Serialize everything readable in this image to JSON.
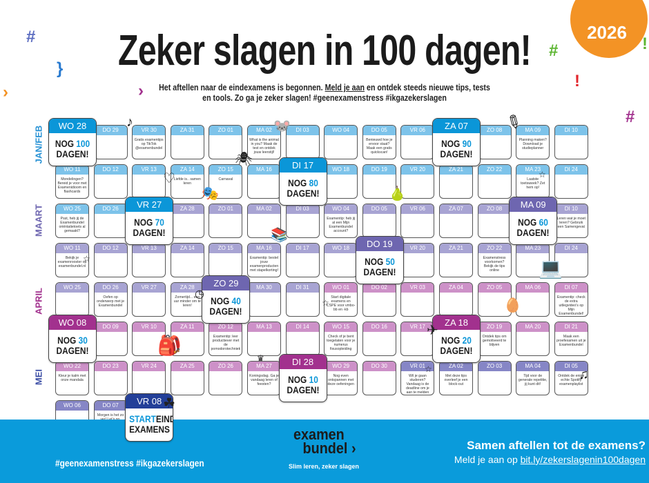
{
  "year": "2026",
  "title": "Zeker slagen in 100 dagen!",
  "subtitle": {
    "part1": "Het aftellen naar de eindexamens is begonnen. ",
    "link": "Meld je aan",
    "part2": " en ontdek steeds nieuwe tips, tests en tools. Zo ga je zeker slagen! #geenexamenstress #ikgazekerslagen"
  },
  "months": [
    {
      "label": "JAN/FEB",
      "color": "#2a93d5"
    },
    {
      "label": "MAART",
      "color": "#6e66b0"
    },
    {
      "label": "APRIL",
      "color": "#a2318e"
    },
    {
      "label": "MEI",
      "color": "#3d4fa6"
    }
  ],
  "colors": {
    "feb": "#7dc3ea",
    "mrt": "#a8a4d3",
    "apr": "#cd91c8",
    "mei": "#8686c6",
    "blue": "#0b96d8",
    "purple": "#6e66b0",
    "magenta": "#a2318e",
    "navy": "#233f98",
    "count": "#0b96d8",
    "footer": "#0a9bdb",
    "year": "#f39325"
  },
  "big_text": {
    "nog": "NOG",
    "dagen": "DAGEN!",
    "start": "START",
    "eind": "EIND-",
    "examens": "EXAMENS"
  },
  "rows": [
    [
      {
        "day": "WO 28",
        "big": "blue",
        "count": "100"
      },
      {
        "day": "DO 29",
        "t": "feb"
      },
      {
        "day": "VR 30",
        "t": "feb",
        "note": "Gratis examentips op TikTok @examenbundel"
      },
      {
        "day": "ZA 31",
        "t": "feb"
      },
      {
        "day": "ZO 01",
        "t": "feb"
      },
      {
        "day": "MA 02",
        "t": "feb",
        "note": "What is the animal in you? Maak de test en ontdek jouw leerstijl!"
      },
      {
        "day": "DI 03",
        "t": "feb"
      },
      {
        "day": "WO 04",
        "t": "feb"
      },
      {
        "day": "DO 05",
        "t": "feb",
        "note": "Benieuwd hoe je ervoor staat? Maak een gratis quickscan!"
      },
      {
        "day": "VR 06",
        "t": "feb"
      },
      {
        "day": "ZA 07",
        "big": "blue",
        "count": "90"
      },
      {
        "day": "ZO 08",
        "t": "feb"
      },
      {
        "day": "MA 09",
        "t": "feb",
        "note": "Planning maken? Download je studieplanner"
      },
      {
        "day": "DI 10",
        "t": "feb"
      }
    ],
    [
      {
        "day": "WO 11",
        "t": "feb",
        "note": "Mondelingen? Bereid je voor met Examenidioom en flashcards"
      },
      {
        "day": "DO 12",
        "t": "feb"
      },
      {
        "day": "VR 13",
        "t": "feb"
      },
      {
        "day": "ZA 14",
        "t": "feb",
        "note": "Liefde is.. samen leren"
      },
      {
        "day": "ZO 15",
        "t": "feb",
        "note": "Carnaval"
      },
      {
        "day": "MA 16",
        "t": "feb"
      },
      {
        "day": "DI 17",
        "big": "blue",
        "count": "80"
      },
      {
        "day": "WO 18",
        "t": "feb"
      },
      {
        "day": "DO 19",
        "t": "feb"
      },
      {
        "day": "VR 20",
        "t": "feb"
      },
      {
        "day": "ZA 21",
        "t": "feb"
      },
      {
        "day": "ZO 22",
        "t": "feb"
      },
      {
        "day": "MA 23",
        "t": "feb",
        "note": "Laatste toetsweek? Zet hem op!"
      },
      {
        "day": "DI 24",
        "t": "feb"
      }
    ],
    [
      {
        "day": "WO 25",
        "t": "feb",
        "note": "Psst, heb jij de Examenbundel oriëntatietoets al gemaakt?"
      },
      {
        "day": "DO 26",
        "t": "feb"
      },
      {
        "day": "VR 27",
        "big": "blue",
        "count": "70"
      },
      {
        "day": "ZA 28",
        "t": "mrt"
      },
      {
        "day": "ZO 01",
        "t": "mrt"
      },
      {
        "day": "MA 02",
        "t": "mrt"
      },
      {
        "day": "DI 03",
        "t": "mrt"
      },
      {
        "day": "WO 04",
        "t": "mrt",
        "note": "Examentip: heb jij al een Mijn Examenbundel account?"
      },
      {
        "day": "DO 05",
        "t": "mrt"
      },
      {
        "day": "VR 06",
        "t": "mrt"
      },
      {
        "day": "ZA 07",
        "t": "mrt"
      },
      {
        "day": "ZO 08",
        "t": "mrt"
      },
      {
        "day": "MA 09",
        "big": "purple",
        "count": "60"
      },
      {
        "day": "DI 10",
        "t": "mrt",
        "note": "Leren wat je moet leren? Gebruik een Samengevat"
      }
    ],
    [
      {
        "day": "WO 11",
        "t": "mrt",
        "note": "Bekijk je examenrooster op examenbundel.nl"
      },
      {
        "day": "DO 12",
        "t": "mrt"
      },
      {
        "day": "VR 13",
        "t": "mrt"
      },
      {
        "day": "ZA 14",
        "t": "mrt"
      },
      {
        "day": "ZO 15",
        "t": "mrt"
      },
      {
        "day": "MA 16",
        "t": "mrt",
        "note": "Examentip: bestel jouw examenproducten met stapelkorting!"
      },
      {
        "day": "DI 17",
        "t": "mrt"
      },
      {
        "day": "WO 18",
        "t": "mrt"
      },
      {
        "day": "DO 19",
        "big": "purple",
        "count": "50"
      },
      {
        "day": "VR 20",
        "t": "mrt"
      },
      {
        "day": "ZA 21",
        "t": "mrt"
      },
      {
        "day": "ZO 22",
        "t": "mrt",
        "note": "Examenstress voorkomen? Bekijk de tips online"
      },
      {
        "day": "MA 23",
        "t": "mrt"
      },
      {
        "day": "DI 24",
        "t": "mrt"
      }
    ],
    [
      {
        "day": "WO 25",
        "t": "mrt"
      },
      {
        "day": "DO 26",
        "t": "mrt",
        "note": "Oefen op onderwerp met je Examenbundel"
      },
      {
        "day": "VR 27",
        "t": "mrt"
      },
      {
        "day": "ZA 28",
        "t": "mrt",
        "note": "Zomertijd... een uur minder om te leren!"
      },
      {
        "day": "ZO 29",
        "big": "purple",
        "count": "40"
      },
      {
        "day": "MA 30",
        "t": "mrt"
      },
      {
        "day": "DI 31",
        "t": "mrt"
      },
      {
        "day": "WO 01",
        "t": "apr",
        "note": "Start digitale examens en CSPE voor vmbo-bb en -kb"
      },
      {
        "day": "DO 02",
        "t": "apr"
      },
      {
        "day": "VR 03",
        "t": "apr"
      },
      {
        "day": "ZA 04",
        "t": "apr"
      },
      {
        "day": "ZO 05",
        "t": "apr"
      },
      {
        "day": "MA 06",
        "t": "apr"
      },
      {
        "day": "DI 07",
        "t": "apr",
        "note": "Examentip: check de extra uitlegvideo's op Mijn Examenbundel!"
      }
    ],
    [
      {
        "day": "WO 08",
        "big": "magenta",
        "count": "30"
      },
      {
        "day": "DO 09",
        "t": "apr"
      },
      {
        "day": "VR 10",
        "t": "apr"
      },
      {
        "day": "ZA 11",
        "t": "apr"
      },
      {
        "day": "ZO 12",
        "t": "apr",
        "note": "Examentip: leer productiever met de pomodorotechniek"
      },
      {
        "day": "MA 13",
        "t": "apr"
      },
      {
        "day": "DI 14",
        "t": "apr"
      },
      {
        "day": "WO 15",
        "t": "apr",
        "note": "Check of je bent toegelaten voor je numerus fixusopleiding"
      },
      {
        "day": "DO 16",
        "t": "apr"
      },
      {
        "day": "VR 17",
        "t": "apr"
      },
      {
        "day": "ZA 18",
        "big": "magenta",
        "count": "20"
      },
      {
        "day": "ZO 19",
        "t": "apr",
        "note": "Ontdek tips om gemotiveerd te blijven"
      },
      {
        "day": "MA 20",
        "t": "apr"
      },
      {
        "day": "DI 21",
        "t": "apr",
        "note": "Maak een proefexamen uit je Examenbundel"
      }
    ],
    [
      {
        "day": "WO 22",
        "t": "apr",
        "note": "Kleur je kalm met onze mandala"
      },
      {
        "day": "DO 23",
        "t": "apr"
      },
      {
        "day": "VR 24",
        "t": "apr"
      },
      {
        "day": "ZA 25",
        "t": "apr"
      },
      {
        "day": "ZO 26",
        "t": "apr"
      },
      {
        "day": "MA 27",
        "t": "apr",
        "note": "Koningsdag. Ga je vandaag leren of feesten?"
      },
      {
        "day": "DI 28",
        "big": "magenta",
        "count": "10"
      },
      {
        "day": "WO 29",
        "t": "apr",
        "note": "Nog even ontspannen met deze oefeningen"
      },
      {
        "day": "DO 30",
        "t": "apr"
      },
      {
        "day": "VR 01",
        "t": "mei",
        "note": "Wil je gaan studeren? Vandaag is de deadline om je aan te melden"
      },
      {
        "day": "ZA 02",
        "t": "mei",
        "note": "Met deze tips overleef je een block-out"
      },
      {
        "day": "ZO 03",
        "t": "mei"
      },
      {
        "day": "MA 04",
        "t": "mei",
        "note": "Tijd voor de generale repetitie, jij kunt dit!"
      },
      {
        "day": "DI 05",
        "t": "mei",
        "note": "Ontdek de enige echte Spotify examenplaylist"
      }
    ],
    [
      {
        "day": "WO 06",
        "t": "mei"
      },
      {
        "day": "DO 07",
        "t": "mei",
        "note": "Morgen is het zo ver! Let's go. Success!"
      },
      {
        "day": "VR 08",
        "big": "navy",
        "start": true
      }
    ]
  ],
  "footer": {
    "hashtags": "#geenexamenstress #ikgazekerslagen",
    "logo_line1": "examen",
    "logo_line2": "bundel",
    "slogan": "Slim leren, zeker slagen",
    "cta_title": "Samen aftellen tot de examens?",
    "cta_text": "Meld je aan op ",
    "cta_link": "bit.ly/zekerslagenin100dagen"
  },
  "icons": [
    "tiktok-icon",
    "mouse-icon",
    "bug-icon",
    "heart-icon",
    "mask-icon",
    "pencil-icon",
    "star-icon",
    "fruit-icon",
    "books-icon",
    "clock-icon",
    "laptop-icon",
    "easter-egg-icon",
    "backpack-icon",
    "crown-icon",
    "paper-plane-icon",
    "clover-icon",
    "music-note-icon"
  ]
}
